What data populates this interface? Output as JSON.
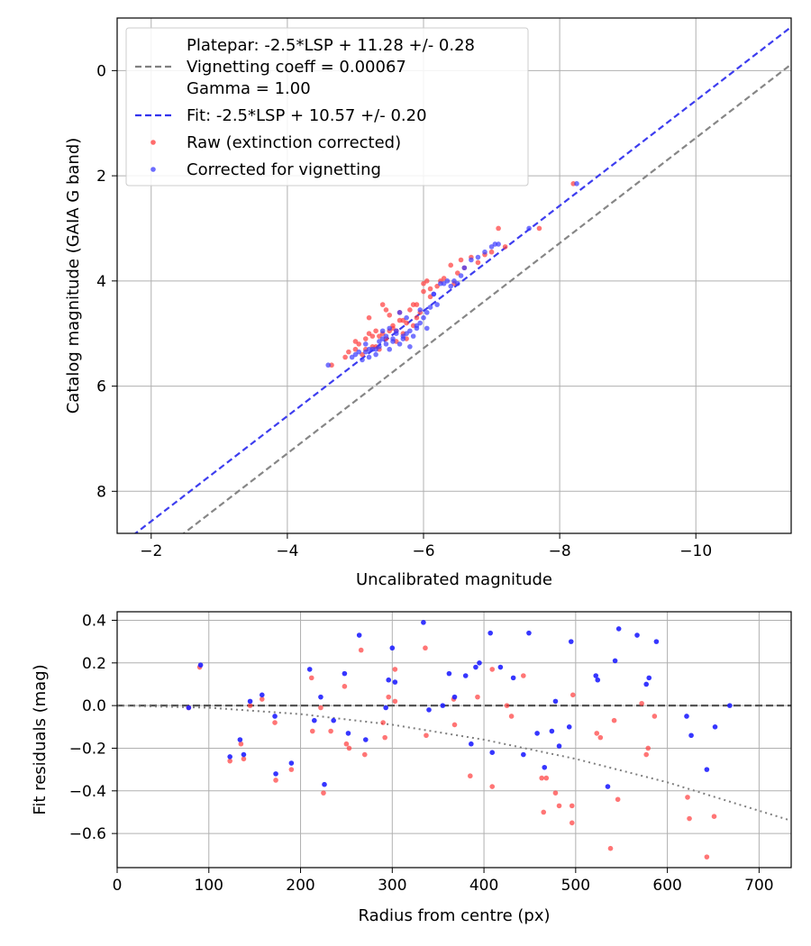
{
  "chart_data": [
    {
      "type": "scatter",
      "xlabel": "Uncalibrated magnitude",
      "ylabel": "Catalog magnitude (GAIA G band)",
      "xlim": [
        -1.5,
        -11.4
      ],
      "ylim": [
        8.8,
        -1.0
      ],
      "x_inverted": true,
      "y_inverted": true,
      "x_ticks": [
        -2,
        -4,
        -6,
        -8,
        -10
      ],
      "x_tick_labels": [
        "−2",
        "−4",
        "−6",
        "−8",
        "−10"
      ],
      "y_ticks": [
        0,
        2,
        4,
        6,
        8
      ],
      "y_tick_labels": [
        "0",
        "2",
        "4",
        "6",
        "8"
      ],
      "grid": true,
      "legend_position": "top-left",
      "legend": [
        {
          "label": "Platepar: -2.5*LSP + 11.28 +/- 0.28\nVignetting coeff = 0.00067\nGamma = 1.00",
          "style": "dashed",
          "color": "#7f7f7f"
        },
        {
          "label": "Fit: -2.5*LSP + 10.57 +/- 0.20",
          "style": "dashed",
          "color": "#3333ee"
        },
        {
          "label": "Raw (extinction corrected)",
          "style": "marker",
          "color": "#ff3b3b"
        },
        {
          "label": "Corrected for vignetting",
          "style": "marker",
          "color": "#3b3bff"
        }
      ],
      "lines": [
        {
          "name": "Platepar",
          "color": "#7f7f7f",
          "intercept": 11.28,
          "slope_per_mag": 1
        },
        {
          "name": "Fit",
          "color": "#3333ee",
          "intercept": 10.57,
          "slope_per_mag": 1
        }
      ],
      "series": [
        {
          "name": "Raw (extinction corrected)",
          "color": "#ff3b3b",
          "x": [
            -4.65,
            -4.85,
            -4.9,
            -5.0,
            -5.05,
            -5.1,
            -5.15,
            -5.2,
            -5.25,
            -5.3,
            -5.35,
            -5.4,
            -5.4,
            -5.45,
            -5.5,
            -5.5,
            -5.55,
            -5.6,
            -5.6,
            -5.65,
            -5.7,
            -5.75,
            -5.8,
            -5.85,
            -5.9,
            -5.95,
            -6.0,
            -6.05,
            -6.1,
            -6.1,
            -6.2,
            -6.25,
            -6.3,
            -6.4,
            -6.45,
            -6.5,
            -6.55,
            -6.6,
            -6.7,
            -6.8,
            -6.9,
            -7.0,
            -7.1,
            -7.2,
            -7.7,
            -8.2,
            -5.2,
            -5.3,
            -5.45,
            -5.55,
            -5.7,
            -5.85,
            -5.0,
            -5.15,
            -5.35,
            -5.65,
            -5.9,
            -6.0,
            -5.25,
            -5.75
          ],
          "y": [
            5.6,
            5.45,
            5.35,
            5.3,
            5.2,
            5.4,
            5.1,
            5.0,
            5.25,
            4.95,
            5.3,
            5.0,
            4.45,
            5.1,
            4.65,
            4.95,
            4.85,
            4.95,
            5.15,
            4.6,
            4.75,
            4.8,
            4.55,
            4.45,
            4.7,
            4.6,
            4.05,
            4.0,
            4.15,
            4.3,
            4.1,
            4.0,
            3.95,
            3.7,
            4.05,
            3.85,
            3.6,
            3.75,
            3.55,
            3.65,
            3.5,
            3.45,
            3.0,
            3.35,
            3.0,
            2.15,
            4.7,
            5.25,
            4.55,
            4.9,
            5.0,
            4.85,
            5.15,
            5.3,
            5.05,
            4.75,
            4.45,
            4.2,
            5.05,
            5.1
          ]
        },
        {
          "name": "Corrected for vignetting",
          "color": "#3b3bff",
          "x": [
            -4.6,
            -4.95,
            -5.0,
            -5.05,
            -5.1,
            -5.15,
            -5.2,
            -5.25,
            -5.3,
            -5.35,
            -5.4,
            -5.45,
            -5.5,
            -5.55,
            -5.6,
            -5.65,
            -5.7,
            -5.75,
            -5.8,
            -5.85,
            -5.9,
            -5.95,
            -6.0,
            -6.05,
            -6.1,
            -6.15,
            -6.2,
            -6.3,
            -6.35,
            -6.4,
            -6.5,
            -6.55,
            -6.6,
            -6.7,
            -6.8,
            -6.9,
            -7.0,
            -7.05,
            -7.1,
            -7.55,
            -8.25,
            -5.2,
            -5.3,
            -5.45,
            -5.55,
            -5.65,
            -5.75,
            -5.9,
            -6.05,
            -5.4,
            -5.6,
            -5.8,
            -6.25,
            -6.45,
            -5.15,
            -5.35,
            -5.5,
            -5.7,
            -5.95,
            -6.15
          ],
          "y": [
            5.6,
            5.45,
            5.4,
            5.35,
            5.5,
            5.2,
            5.45,
            5.3,
            5.4,
            5.25,
            5.1,
            5.2,
            5.3,
            5.15,
            4.95,
            5.2,
            5.1,
            5.0,
            4.95,
            5.05,
            4.9,
            4.8,
            4.7,
            4.6,
            4.5,
            4.25,
            4.45,
            4.05,
            4.0,
            4.1,
            4.05,
            3.9,
            3.75,
            3.6,
            3.55,
            3.45,
            3.35,
            3.3,
            3.3,
            3.0,
            2.15,
            5.3,
            5.3,
            5.05,
            5.1,
            4.6,
            4.7,
            4.85,
            4.9,
            4.95,
            5.0,
            5.25,
            4.05,
            4.0,
            5.35,
            5.15,
            4.9,
            5.05,
            4.55,
            4.25
          ]
        }
      ]
    },
    {
      "type": "scatter",
      "xlabel": "Radius from centre (px)",
      "ylabel": "Fit residuals (mag)",
      "xlim": [
        0,
        735
      ],
      "ylim": [
        -0.76,
        0.44
      ],
      "x_ticks": [
        0,
        100,
        200,
        300,
        400,
        500,
        600,
        700
      ],
      "x_tick_labels": [
        "0",
        "100",
        "200",
        "300",
        "400",
        "500",
        "600",
        "700"
      ],
      "y_ticks": [
        0.4,
        0.2,
        0.0,
        -0.2,
        -0.4,
        -0.6
      ],
      "y_tick_labels": [
        "0.4",
        "0.2",
        "0.0",
        "−0.2",
        "−0.4",
        "−0.6"
      ],
      "grid": true,
      "lines": [
        {
          "name": "zero",
          "style": "dashed",
          "color": "#555555",
          "y": 0.0
        },
        {
          "name": "vignetting model",
          "style": "dotted",
          "color": "#7f7f7f",
          "points": [
            [
              0,
              0
            ],
            [
              100,
              -0.01
            ],
            [
              200,
              -0.04
            ],
            [
              300,
              -0.09
            ],
            [
              400,
              -0.16
            ],
            [
              500,
              -0.25
            ],
            [
              600,
              -0.36
            ],
            [
              735,
              -0.54
            ]
          ]
        }
      ],
      "series": [
        {
          "name": "Raw (extinction corrected)",
          "color": "#ff3b3b",
          "x": [
            78,
            90,
            123,
            135,
            138,
            145,
            158,
            172,
            173,
            190,
            212,
            213,
            222,
            225,
            233,
            248,
            250,
            253,
            266,
            270,
            290,
            292,
            296,
            303,
            303,
            336,
            337,
            367,
            368,
            385,
            393,
            409,
            409,
            425,
            430,
            443,
            463,
            465,
            468,
            478,
            482,
            496,
            496,
            497,
            523,
            527,
            538,
            542,
            546,
            572,
            577,
            579,
            586,
            622,
            624,
            643,
            651
          ],
          "y": [
            -0.01,
            0.18,
            -0.26,
            -0.18,
            -0.25,
            0.0,
            0.03,
            -0.08,
            -0.35,
            -0.3,
            0.13,
            -0.12,
            -0.01,
            -0.41,
            -0.12,
            0.09,
            -0.18,
            -0.2,
            0.26,
            -0.23,
            -0.08,
            -0.15,
            0.04,
            0.17,
            0.02,
            0.27,
            -0.14,
            0.03,
            -0.09,
            -0.33,
            0.04,
            0.17,
            -0.38,
            0.0,
            -0.05,
            0.14,
            -0.34,
            -0.5,
            -0.34,
            -0.41,
            -0.47,
            -0.47,
            -0.55,
            0.05,
            -0.13,
            -0.15,
            -0.67,
            -0.07,
            -0.44,
            0.01,
            -0.23,
            -0.2,
            -0.05,
            -0.43,
            -0.53,
            -0.71,
            -0.52
          ]
        },
        {
          "name": "Corrected for vignetting",
          "color": "#2020ff",
          "x": [
            78,
            91,
            123,
            134,
            138,
            145,
            158,
            172,
            173,
            190,
            210,
            215,
            222,
            226,
            236,
            248,
            252,
            264,
            271,
            293,
            296,
            300,
            303,
            334,
            340,
            355,
            362,
            368,
            380,
            386,
            391,
            395,
            407,
            409,
            418,
            432,
            443,
            449,
            458,
            466,
            474,
            478,
            482,
            493,
            495,
            522,
            524,
            535,
            543,
            547,
            567,
            577,
            580,
            588,
            621,
            626,
            643,
            652,
            668
          ],
          "y": [
            -0.01,
            0.19,
            -0.24,
            -0.16,
            -0.23,
            0.02,
            0.05,
            -0.05,
            -0.32,
            -0.27,
            0.17,
            -0.07,
            0.04,
            -0.37,
            -0.07,
            0.15,
            -0.13,
            0.33,
            -0.16,
            -0.01,
            0.12,
            0.27,
            0.11,
            0.39,
            -0.02,
            0.0,
            0.15,
            0.04,
            0.14,
            -0.18,
            0.18,
            0.2,
            0.34,
            -0.22,
            0.18,
            0.13,
            -0.23,
            0.34,
            -0.13,
            -0.29,
            -0.12,
            0.02,
            -0.19,
            -0.1,
            0.3,
            0.14,
            0.12,
            -0.38,
            0.21,
            0.36,
            0.33,
            0.1,
            0.13,
            0.3,
            -0.05,
            -0.14,
            -0.3,
            -0.1,
            0.0
          ]
        }
      ]
    }
  ]
}
